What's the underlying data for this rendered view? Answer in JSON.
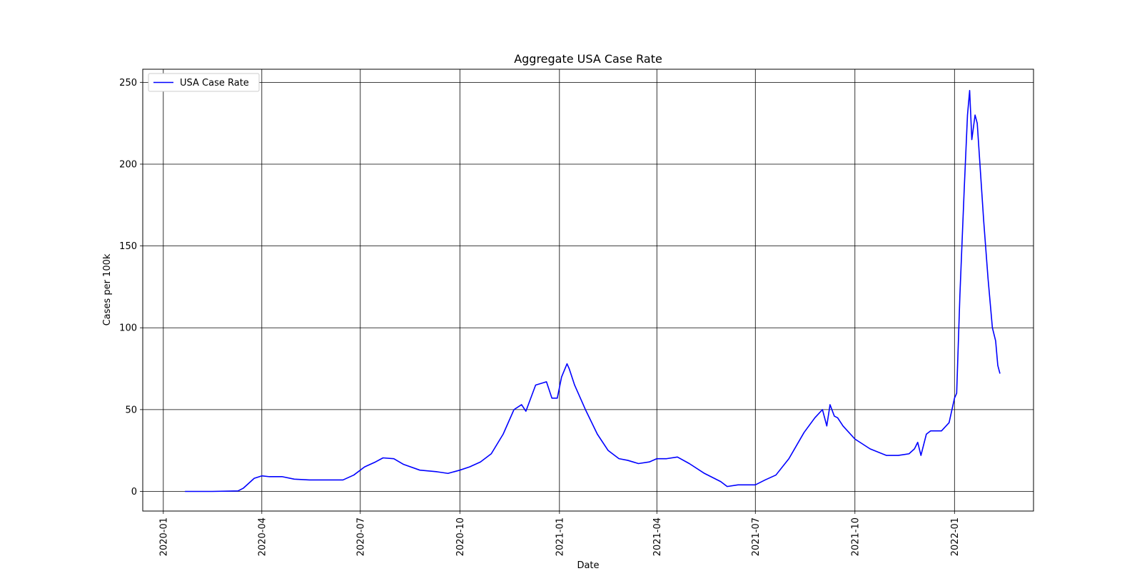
{
  "chart_data": {
    "type": "line",
    "title": "Aggregate USA Case Rate",
    "xlabel": "Date",
    "ylabel": "Cases per 100k",
    "x_type": "date",
    "xlim": [
      "2019-12-13",
      "2022-03-15"
    ],
    "ylim": [
      -12,
      258
    ],
    "grid": true,
    "legend_position": "upper-left",
    "x_ticks": [
      "2020-01",
      "2020-04",
      "2020-07",
      "2020-10",
      "2021-01",
      "2021-04",
      "2021-07",
      "2021-10",
      "2022-01"
    ],
    "y_ticks": [
      0,
      50,
      100,
      150,
      200,
      250
    ],
    "line_color": "#0000ff",
    "series": [
      {
        "name": "USA Case Rate",
        "x": [
          "2020-01-21",
          "2020-02-15",
          "2020-03-10",
          "2020-03-15",
          "2020-03-20",
          "2020-03-25",
          "2020-04-01",
          "2020-04-08",
          "2020-04-20",
          "2020-05-01",
          "2020-05-15",
          "2020-06-01",
          "2020-06-15",
          "2020-06-25",
          "2020-07-05",
          "2020-07-15",
          "2020-07-22",
          "2020-08-01",
          "2020-08-10",
          "2020-08-25",
          "2020-09-10",
          "2020-09-20",
          "2020-10-01",
          "2020-10-10",
          "2020-10-20",
          "2020-10-30",
          "2020-11-10",
          "2020-11-20",
          "2020-11-27",
          "2020-12-01",
          "2020-12-10",
          "2020-12-20",
          "2020-12-25",
          "2020-12-30",
          "2021-01-03",
          "2021-01-08",
          "2021-01-10",
          "2021-01-15",
          "2021-01-25",
          "2021-02-05",
          "2021-02-15",
          "2021-02-25",
          "2021-03-05",
          "2021-03-15",
          "2021-03-25",
          "2021-04-01",
          "2021-04-10",
          "2021-04-20",
          "2021-05-01",
          "2021-05-15",
          "2021-05-30",
          "2021-06-05",
          "2021-06-15",
          "2021-06-25",
          "2021-07-01",
          "2021-07-10",
          "2021-07-20",
          "2021-08-01",
          "2021-08-15",
          "2021-08-25",
          "2021-09-01",
          "2021-09-05",
          "2021-09-08",
          "2021-09-12",
          "2021-09-15",
          "2021-09-20",
          "2021-10-01",
          "2021-10-15",
          "2021-10-30",
          "2021-11-10",
          "2021-11-20",
          "2021-11-25",
          "2021-11-28",
          "2021-12-01",
          "2021-12-06",
          "2021-12-10",
          "2021-12-20",
          "2021-12-27",
          "2022-01-01",
          "2022-01-03",
          "2022-01-06",
          "2022-01-10",
          "2022-01-13",
          "2022-01-15",
          "2022-01-17",
          "2022-01-20",
          "2022-01-22",
          "2022-01-25",
          "2022-01-28",
          "2022-02-01",
          "2022-02-05",
          "2022-02-08",
          "2022-02-10",
          "2022-02-12"
        ],
        "y": [
          0,
          0,
          0.3,
          2,
          5,
          8,
          9.5,
          9,
          9,
          7.5,
          7,
          7,
          7,
          10,
          15,
          18,
          20.5,
          20,
          16.5,
          13,
          12,
          11,
          13,
          15,
          18,
          23,
          35,
          50,
          53,
          49,
          65,
          67,
          57,
          57,
          70,
          78,
          75,
          65,
          50,
          35,
          25,
          20,
          19,
          17,
          18,
          20,
          20,
          21,
          17,
          11,
          6,
          3,
          4,
          4,
          4,
          7,
          10,
          20,
          36,
          45,
          50,
          40,
          53,
          46,
          45,
          40,
          32,
          26,
          22,
          22,
          23,
          26,
          30,
          22,
          35,
          37,
          37,
          42,
          57,
          60,
          120,
          185,
          230,
          245,
          215,
          230,
          225,
          195,
          165,
          130,
          100,
          92,
          77,
          72
        ]
      }
    ]
  }
}
